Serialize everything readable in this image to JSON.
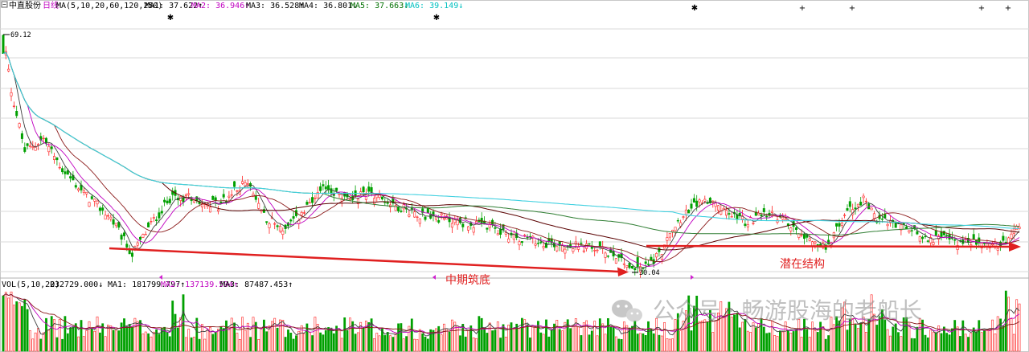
{
  "header": {
    "icon": "list-toggle-icon",
    "stock_name": "中直股份",
    "period": "日线",
    "ma_params": "MA(5,10,20,60,120,250)",
    "ma": [
      {
        "label": "MA1:",
        "value": "37.622↑",
        "color": "#000000"
      },
      {
        "label": "MA2:",
        "value": "36.946↑",
        "color": "#c000c0"
      },
      {
        "label": "MA3:",
        "value": "36.528↑",
        "color": "#000000"
      },
      {
        "label": "MA4:",
        "value": "36.801↓",
        "color": "#000000"
      },
      {
        "label": "MA5:",
        "value": "37.663↓",
        "color": "#007000"
      },
      {
        "label": "MA6:",
        "value": "39.149↓",
        "color": "#00c0c0"
      }
    ]
  },
  "volume_header": {
    "params": "VOL(5,10,20)",
    "value": "232729.000↓",
    "ma": [
      {
        "label": "MA1:",
        "value": "181799.797↑",
        "color": "#000000"
      },
      {
        "label": "MA2:",
        "value": "137139.594↑",
        "color": "#c000c0"
      },
      {
        "label": "MA3:",
        "value": "87487.453↑",
        "color": "#000000"
      }
    ]
  },
  "price_labels": {
    "high": "69.12",
    "low": "30.04"
  },
  "annotations": {
    "left": "中期筑底",
    "right": "潜在结构"
  },
  "watermark": "公众号 · 畅游股海的老船长",
  "colors": {
    "up": "#ff2020",
    "down": "#00a000",
    "grid": "#d8d8d8",
    "arrow": "#e02020",
    "ma1": "#404040",
    "ma2": "#c000c0",
    "ma3": "#8b1a1a",
    "ma4": "#5a0000",
    "ma5": "#2e7d32",
    "ma6": "#40d0e0"
  },
  "chart_data": {
    "type": "candlestick",
    "series": [
      {
        "name": "MA1",
        "period": 5
      },
      {
        "name": "MA2",
        "period": 10
      },
      {
        "name": "MA3",
        "period": 20
      },
      {
        "name": "MA4",
        "period": 60
      },
      {
        "name": "MA5",
        "period": 120
      },
      {
        "name": "MA6",
        "period": 250
      }
    ],
    "price_high": 69.12,
    "price_low": 30.04,
    "price_last_approx": 37.6,
    "price_path_approx": [
      [
        0,
        69.12
      ],
      [
        3,
        60
      ],
      [
        8,
        50
      ],
      [
        15,
        52
      ],
      [
        22,
        47
      ],
      [
        30,
        43
      ],
      [
        40,
        39
      ],
      [
        48,
        33
      ],
      [
        55,
        38
      ],
      [
        62,
        42
      ],
      [
        70,
        42.5
      ],
      [
        80,
        41
      ],
      [
        90,
        45
      ],
      [
        98,
        39
      ],
      [
        105,
        37
      ],
      [
        112,
        40
      ],
      [
        120,
        44
      ],
      [
        128,
        42
      ],
      [
        136,
        43.5
      ],
      [
        146,
        41
      ],
      [
        156,
        39.5
      ],
      [
        168,
        38.5
      ],
      [
        180,
        37.5
      ],
      [
        190,
        36
      ],
      [
        200,
        35
      ],
      [
        210,
        34.5
      ],
      [
        220,
        34
      ],
      [
        228,
        33
      ],
      [
        236,
        30.04
      ],
      [
        244,
        33
      ],
      [
        252,
        39
      ],
      [
        260,
        42
      ],
      [
        268,
        40
      ],
      [
        276,
        38.5
      ],
      [
        286,
        39.5
      ],
      [
        296,
        37
      ],
      [
        306,
        34
      ],
      [
        314,
        40
      ],
      [
        320,
        42
      ],
      [
        326,
        38.5
      ],
      [
        334,
        37.5
      ],
      [
        342,
        36
      ],
      [
        350,
        35.5
      ],
      [
        358,
        35
      ],
      [
        366,
        34.8
      ],
      [
        372,
        34.5
      ],
      [
        378,
        37.6
      ]
    ],
    "volume_last": 232729.0,
    "volume_ma": [
      181799.797,
      137139.594,
      87487.453
    ]
  }
}
